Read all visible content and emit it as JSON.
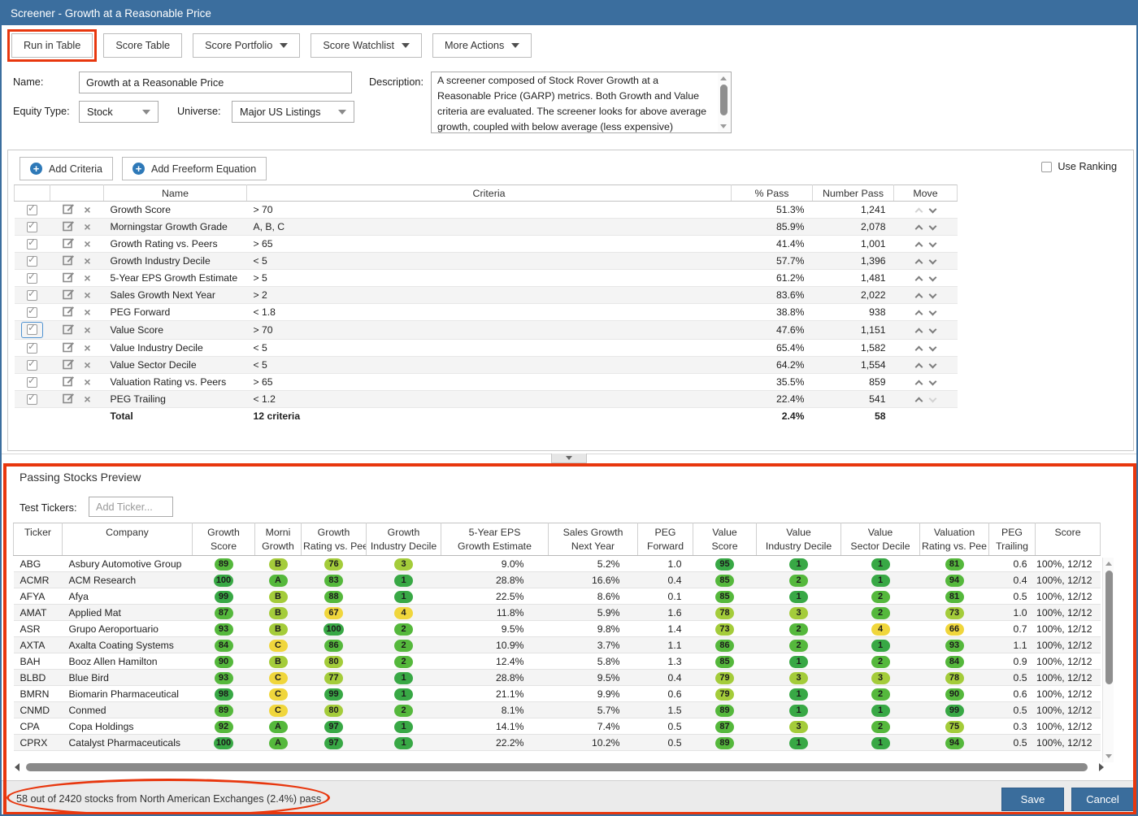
{
  "window": {
    "title": "Screener - Growth at a Reasonable Price"
  },
  "toolbar": {
    "buttons": [
      {
        "label": "Run in Table",
        "annotated": true
      },
      {
        "label": "Score Table"
      },
      {
        "label": "Score Portfolio",
        "dropdown": true
      },
      {
        "label": "Score Watchlist",
        "dropdown": true
      },
      {
        "label": "More Actions",
        "dropdown": true
      }
    ]
  },
  "form": {
    "name_label": "Name:",
    "name_value": "Growth at a Reasonable Price",
    "equity_type_label": "Equity Type:",
    "equity_type_value": "Stock",
    "universe_label": "Universe:",
    "universe_value": "Major US Listings",
    "description_label": "Description:",
    "description": "A screener composed of Stock Rover Growth at a Reasonable Price (GARP) metrics. Both Growth and Value criteria are evaluated. The screener looks for above average growth, coupled with below average (less expensive) valuation."
  },
  "criteria_section": {
    "add_criteria_label": "Add Criteria",
    "add_freeform_label": "Add Freeform Equation",
    "use_ranking_label": "Use Ranking",
    "columns": {
      "name": "Name",
      "criteria": "Criteria",
      "pass": "% Pass",
      "number_pass": "Number Pass",
      "move": "Move"
    },
    "rows": [
      {
        "name": "Growth Score",
        "criteria": "> 70",
        "pass": "51.3%",
        "number_pass": "1,241",
        "up_disabled": true
      },
      {
        "name": "Morningstar Growth Grade",
        "criteria": "A, B, C",
        "pass": "85.9%",
        "number_pass": "2,078"
      },
      {
        "name": "Growth Rating vs. Peers",
        "criteria": "> 65",
        "pass": "41.4%",
        "number_pass": "1,001"
      },
      {
        "name": "Growth Industry Decile",
        "criteria": "< 5",
        "pass": "57.7%",
        "number_pass": "1,396"
      },
      {
        "name": "5-Year EPS Growth Estimate",
        "criteria": "> 5",
        "pass": "61.2%",
        "number_pass": "1,481"
      },
      {
        "name": "Sales Growth Next Year",
        "criteria": "> 2",
        "pass": "83.6%",
        "number_pass": "2,022"
      },
      {
        "name": "PEG Forward",
        "criteria": "< 1.8",
        "pass": "38.8%",
        "number_pass": "938"
      },
      {
        "name": "Value Score",
        "criteria": "> 70",
        "pass": "47.6%",
        "number_pass": "1,151",
        "focused": true
      },
      {
        "name": "Value Industry Decile",
        "criteria": "< 5",
        "pass": "65.4%",
        "number_pass": "1,582"
      },
      {
        "name": "Value Sector Decile",
        "criteria": "< 5",
        "pass": "64.2%",
        "number_pass": "1,554"
      },
      {
        "name": "Valuation Rating vs. Peers",
        "criteria": "> 65",
        "pass": "35.5%",
        "number_pass": "859"
      },
      {
        "name": "PEG Trailing",
        "criteria": "< 1.2",
        "pass": "22.4%",
        "number_pass": "541",
        "down_disabled": true
      }
    ],
    "total_row": {
      "name": "Total",
      "criteria": "12 criteria",
      "pass": "2.4%",
      "number_pass": "58"
    }
  },
  "preview": {
    "title": "Passing Stocks Preview",
    "test_tickers_label": "Test Tickers:",
    "add_ticker_placeholder": "Add Ticker...",
    "columns": [
      {
        "l1": "Ticker"
      },
      {
        "l1": "Company"
      },
      {
        "l1": "Growth",
        "l2": "Score"
      },
      {
        "l1": "Morni",
        "l2": "Growth"
      },
      {
        "l1": "Growth",
        "l2": "Rating vs. Pee"
      },
      {
        "l1": "Growth",
        "l2": "Industry Decile"
      },
      {
        "l1": "5-Year EPS",
        "l2": "Growth Estimate"
      },
      {
        "l1": "Sales Growth",
        "l2": "Next Year"
      },
      {
        "l1": "PEG",
        "l2": "Forward"
      },
      {
        "l1": "Value",
        "l2": "Score"
      },
      {
        "l1": "Value",
        "l2": "Industry Decile"
      },
      {
        "l1": "Value",
        "l2": "Sector Decile"
      },
      {
        "l1": "Valuation",
        "l2": "Rating vs. Pee"
      },
      {
        "l1": "PEG",
        "l2": "Trailing"
      },
      {
        "l1": "Score"
      }
    ],
    "rows": [
      {
        "ticker": "ABG",
        "company": "Asbury Automotive Group",
        "growth_score": 89,
        "morn_grade": "B",
        "growth_rating": 76,
        "growth_industry_decile": 3,
        "eps_growth_5y": "9.0%",
        "sales_growth_next_year": "5.2%",
        "peg_forward": "1.0",
        "value_score": 95,
        "value_industry_decile": 1,
        "value_sector_decile": 1,
        "valuation_rating": 81,
        "peg_trailing": "0.6",
        "score": "100%, 12/12"
      },
      {
        "ticker": "ACMR",
        "company": "ACM Research",
        "growth_score": 100,
        "morn_grade": "A",
        "growth_rating": 83,
        "growth_industry_decile": 1,
        "eps_growth_5y": "28.8%",
        "sales_growth_next_year": "16.6%",
        "peg_forward": "0.4",
        "value_score": 85,
        "value_industry_decile": 2,
        "value_sector_decile": 1,
        "valuation_rating": 94,
        "peg_trailing": "0.4",
        "score": "100%, 12/12"
      },
      {
        "ticker": "AFYA",
        "company": "Afya",
        "growth_score": 99,
        "morn_grade": "B",
        "growth_rating": 88,
        "growth_industry_decile": 1,
        "eps_growth_5y": "22.5%",
        "sales_growth_next_year": "8.6%",
        "peg_forward": "0.1",
        "value_score": 85,
        "value_industry_decile": 1,
        "value_sector_decile": 2,
        "valuation_rating": 81,
        "peg_trailing": "0.5",
        "score": "100%, 12/12"
      },
      {
        "ticker": "AMAT",
        "company": "Applied Mat",
        "growth_score": 87,
        "morn_grade": "B",
        "growth_rating": 67,
        "growth_industry_decile": 4,
        "eps_growth_5y": "11.8%",
        "sales_growth_next_year": "5.9%",
        "peg_forward": "1.6",
        "value_score": 78,
        "value_industry_decile": 3,
        "value_sector_decile": 2,
        "valuation_rating": 73,
        "peg_trailing": "1.0",
        "score": "100%, 12/12"
      },
      {
        "ticker": "ASR",
        "company": "Grupo Aeroportuario",
        "growth_score": 93,
        "morn_grade": "B",
        "growth_rating": 100,
        "growth_industry_decile": 2,
        "eps_growth_5y": "9.5%",
        "sales_growth_next_year": "9.8%",
        "peg_forward": "1.4",
        "value_score": 73,
        "value_industry_decile": 2,
        "value_sector_decile": 4,
        "valuation_rating": 66,
        "peg_trailing": "0.7",
        "score": "100%, 12/12"
      },
      {
        "ticker": "AXTA",
        "company": "Axalta Coating Systems",
        "growth_score": 84,
        "morn_grade": "C",
        "growth_rating": 86,
        "growth_industry_decile": 2,
        "eps_growth_5y": "10.9%",
        "sales_growth_next_year": "3.7%",
        "peg_forward": "1.1",
        "value_score": 86,
        "value_industry_decile": 2,
        "value_sector_decile": 1,
        "valuation_rating": 93,
        "peg_trailing": "1.1",
        "score": "100%, 12/12"
      },
      {
        "ticker": "BAH",
        "company": "Booz Allen Hamilton",
        "growth_score": 90,
        "morn_grade": "B",
        "growth_rating": 80,
        "growth_industry_decile": 2,
        "eps_growth_5y": "12.4%",
        "sales_growth_next_year": "5.8%",
        "peg_forward": "1.3",
        "value_score": 85,
        "value_industry_decile": 1,
        "value_sector_decile": 2,
        "valuation_rating": 84,
        "peg_trailing": "0.9",
        "score": "100%, 12/12"
      },
      {
        "ticker": "BLBD",
        "company": "Blue Bird",
        "growth_score": 93,
        "morn_grade": "C",
        "growth_rating": 77,
        "growth_industry_decile": 1,
        "eps_growth_5y": "28.8%",
        "sales_growth_next_year": "9.5%",
        "peg_forward": "0.4",
        "value_score": 79,
        "value_industry_decile": 3,
        "value_sector_decile": 3,
        "valuation_rating": 78,
        "peg_trailing": "0.5",
        "score": "100%, 12/12"
      },
      {
        "ticker": "BMRN",
        "company": "Biomarin Pharmaceutical",
        "growth_score": 98,
        "morn_grade": "C",
        "growth_rating": 99,
        "growth_industry_decile": 1,
        "eps_growth_5y": "21.1%",
        "sales_growth_next_year": "9.9%",
        "peg_forward": "0.6",
        "value_score": 79,
        "value_industry_decile": 1,
        "value_sector_decile": 2,
        "valuation_rating": 90,
        "peg_trailing": "0.6",
        "score": "100%, 12/12"
      },
      {
        "ticker": "CNMD",
        "company": "Conmed",
        "growth_score": 89,
        "morn_grade": "C",
        "growth_rating": 80,
        "growth_industry_decile": 2,
        "eps_growth_5y": "8.1%",
        "sales_growth_next_year": "5.7%",
        "peg_forward": "1.5",
        "value_score": 89,
        "value_industry_decile": 1,
        "value_sector_decile": 1,
        "valuation_rating": 99,
        "peg_trailing": "0.5",
        "score": "100%, 12/12"
      },
      {
        "ticker": "CPA",
        "company": "Copa Holdings",
        "growth_score": 92,
        "morn_grade": "A",
        "growth_rating": 97,
        "growth_industry_decile": 1,
        "eps_growth_5y": "14.1%",
        "sales_growth_next_year": "7.4%",
        "peg_forward": "0.5",
        "value_score": 87,
        "value_industry_decile": 3,
        "value_sector_decile": 2,
        "valuation_rating": 75,
        "peg_trailing": "0.3",
        "score": "100%, 12/12"
      },
      {
        "ticker": "CPRX",
        "company": "Catalyst Pharmaceuticals",
        "growth_score": 100,
        "morn_grade": "A",
        "growth_rating": 97,
        "growth_industry_decile": 1,
        "eps_growth_5y": "22.2%",
        "sales_growth_next_year": "10.2%",
        "peg_forward": "0.5",
        "value_score": 89,
        "value_industry_decile": 1,
        "value_sector_decile": 1,
        "valuation_rating": 94,
        "peg_trailing": "0.5",
        "score": "100%, 12/12"
      }
    ]
  },
  "footer": {
    "status": "58 out of 2420 stocks from North American Exchanges (2.4%) pass",
    "save_label": "Save",
    "cancel_label": "Cancel"
  },
  "icons": {
    "plus": "+",
    "delete": "×",
    "check": "✓"
  },
  "colors": {
    "titlebar": "#3b6e9e",
    "button_blue": "#3a6d9c",
    "annotation": "#e8370e",
    "badge_green_dark": "#38a845",
    "badge_green": "#55b83c",
    "badge_yellow_green": "#a4cc3a",
    "badge_yellow": "#f0d63c"
  }
}
